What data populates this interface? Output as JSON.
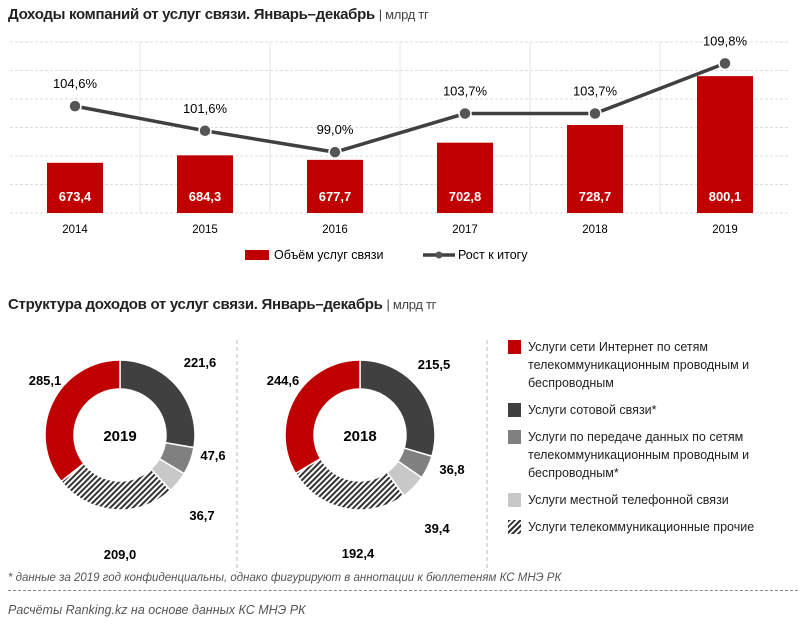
{
  "chart_data": [
    {
      "type": "bar+line",
      "title": "Доходы компаний от услуг связи. Январь–декабрь",
      "unit": "млрд тг",
      "categories": [
        "2014",
        "2015",
        "2016",
        "2017",
        "2018",
        "2019"
      ],
      "series": [
        {
          "name": "Объём услуг связи",
          "type": "bar",
          "color": "#c00000",
          "values": [
            673.4,
            684.3,
            677.7,
            702.8,
            728.7,
            800.1
          ],
          "labels": [
            "673,4",
            "684,3",
            "677,7",
            "702,8",
            "728,7",
            "800,1"
          ]
        },
        {
          "name": "Рост к итогу",
          "type": "line",
          "color": "#404040",
          "values": [
            104.6,
            101.6,
            99.0,
            103.7,
            103.7,
            109.8
          ],
          "labels": [
            "104,6%",
            "101,6%",
            "99,0%",
            "103,7%",
            "103,7%",
            "109,8%"
          ]
        }
      ],
      "ylim": [
        600,
        850
      ],
      "y2lim": [
        91.6,
        112.4
      ],
      "grid": true,
      "legend": "bottom"
    },
    {
      "type": "pie",
      "donut": true,
      "title": "Структура доходов от услуг связи. Январь–декабрь",
      "unit": "млрд тг",
      "categories": [
        "Услуги сети Интернет по сетям телекоммуникационным проводным и беспроводным",
        "Услуги сотовой связи*",
        "Услуги по передаче данных по сетям телекоммуникационным проводным и беспроводным*",
        "Услуги местной телефонной связи",
        "Услуги телекоммуникационные прочие"
      ],
      "colors": [
        "#c00000",
        "#404040",
        "#808080",
        "#c8c8c8",
        "hatch"
      ],
      "series": [
        {
          "name": "2019",
          "values": [
            285.1,
            221.6,
            47.6,
            36.7,
            209.0
          ],
          "labels": [
            "285,1",
            "221,6",
            "47,6",
            "36,7",
            "209,0"
          ]
        },
        {
          "name": "2018",
          "values": [
            244.6,
            215.5,
            36.8,
            39.4,
            192.4
          ],
          "labels": [
            "244,6",
            "215,5",
            "36,8",
            "39,4",
            "192,4"
          ]
        }
      ],
      "legend": "right"
    }
  ],
  "footnote": "* данные за 2019 год конфиденциальны, однако фигурируют в аннотации к бюллетеням КС МНЭ РК",
  "source": "Расчёты Ranking.kz на основе данных  КС МНЭ РК"
}
